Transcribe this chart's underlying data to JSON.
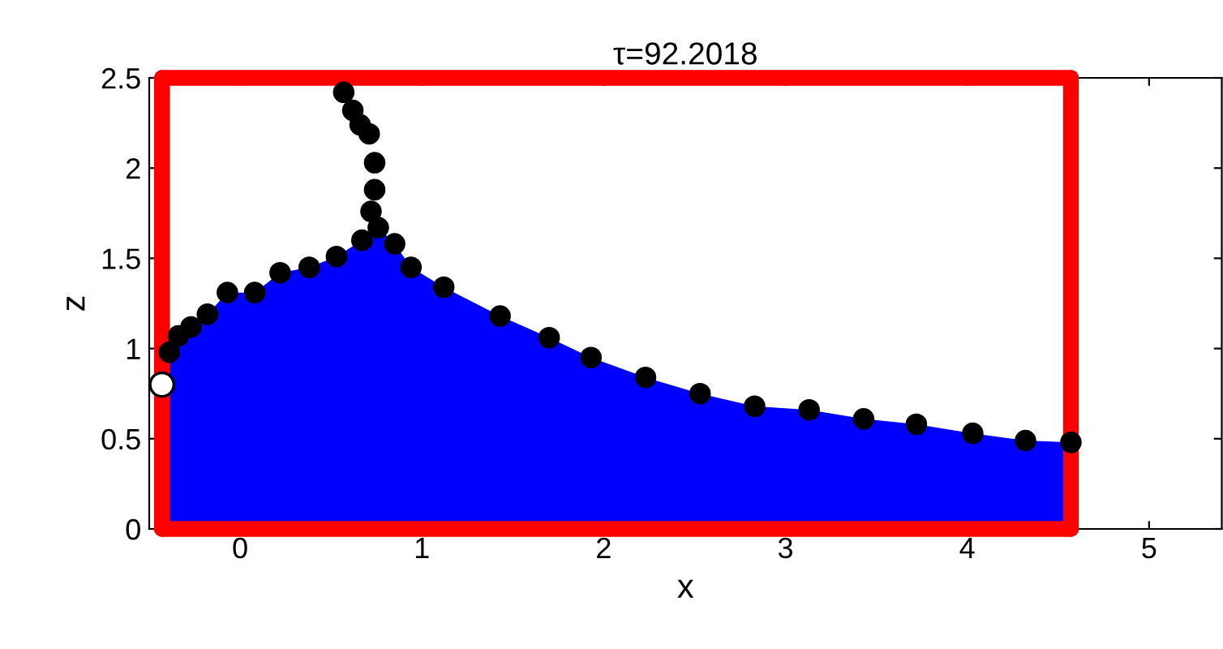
{
  "chart_data": {
    "type": "line",
    "title": "τ=92.2018",
    "xlabel": "x",
    "ylabel": "z",
    "xlim": [
      -0.5,
      5.4
    ],
    "ylim": [
      0,
      2.5
    ],
    "xticks": [
      0,
      1,
      2,
      3,
      4,
      5
    ],
    "yticks": [
      0,
      0.5,
      1,
      1.5,
      2,
      2.5
    ],
    "grid": false,
    "legend": false,
    "ref_lines": [
      {
        "axis": "x",
        "value": -0.43,
        "color": "#ff0000",
        "line_style": "solid"
      },
      {
        "axis": "x",
        "value": 4.57,
        "color": "#ff0000",
        "line_style": "solid"
      }
    ],
    "series": [
      {
        "type": "area",
        "color": "#0000ff",
        "x": [
          -0.43,
          -0.39,
          -0.34,
          -0.27,
          -0.18,
          -0.07,
          0.08,
          0.22,
          0.38,
          0.53,
          0.67,
          0.76,
          0.85,
          0.94,
          1.12,
          1.43,
          1.7,
          1.93,
          2.23,
          2.53,
          2.83,
          3.13,
          3.43,
          3.72,
          4.03,
          4.32,
          4.57
        ],
        "values": [
          0.98,
          0.98,
          1.07,
          1.12,
          1.19,
          1.31,
          1.31,
          1.42,
          1.45,
          1.51,
          1.6,
          1.67,
          1.58,
          1.45,
          1.34,
          1.18,
          1.06,
          0.95,
          0.84,
          0.75,
          0.68,
          0.66,
          0.61,
          0.58,
          0.53,
          0.49,
          0.48
        ]
      },
      {
        "type": "scatter",
        "color": "#000000",
        "marker": "circle",
        "x": [
          -0.39,
          -0.34,
          -0.27,
          -0.18,
          -0.07,
          0.08,
          0.22,
          0.38,
          0.53,
          0.67,
          0.76,
          0.85,
          0.94,
          1.12,
          1.43,
          1.7,
          1.93,
          2.23,
          2.53,
          2.83,
          3.13,
          3.43,
          3.72,
          4.03,
          4.32,
          4.57
        ],
        "values": [
          0.98,
          1.07,
          1.12,
          1.19,
          1.31,
          1.31,
          1.42,
          1.45,
          1.51,
          1.6,
          1.67,
          1.58,
          1.45,
          1.34,
          1.18,
          1.06,
          0.95,
          0.84,
          0.75,
          0.68,
          0.66,
          0.61,
          0.58,
          0.53,
          0.49,
          0.48
        ]
      },
      {
        "type": "scatter",
        "color": "#000000",
        "marker": "circle",
        "x": [
          0.72,
          0.74,
          0.74,
          0.71,
          0.66,
          0.62,
          0.57
        ],
        "values": [
          1.76,
          1.88,
          2.03,
          2.19,
          2.24,
          2.32,
          2.42
        ]
      },
      {
        "color": "#ff0000",
        "marker": "none",
        "line_style": "solid",
        "x": [
          -0.43,
          4.57
        ],
        "values": [
          0,
          0
        ]
      },
      {
        "color": "#ff0000",
        "marker": "none",
        "line_style": "solid",
        "x": [
          -0.43,
          4.57
        ],
        "values": [
          2.5,
          2.5
        ]
      },
      {
        "type": "scatter",
        "color": "#ffffff",
        "marker": "circle",
        "x": [
          -0.43
        ],
        "values": [
          0.8
        ]
      }
    ]
  }
}
